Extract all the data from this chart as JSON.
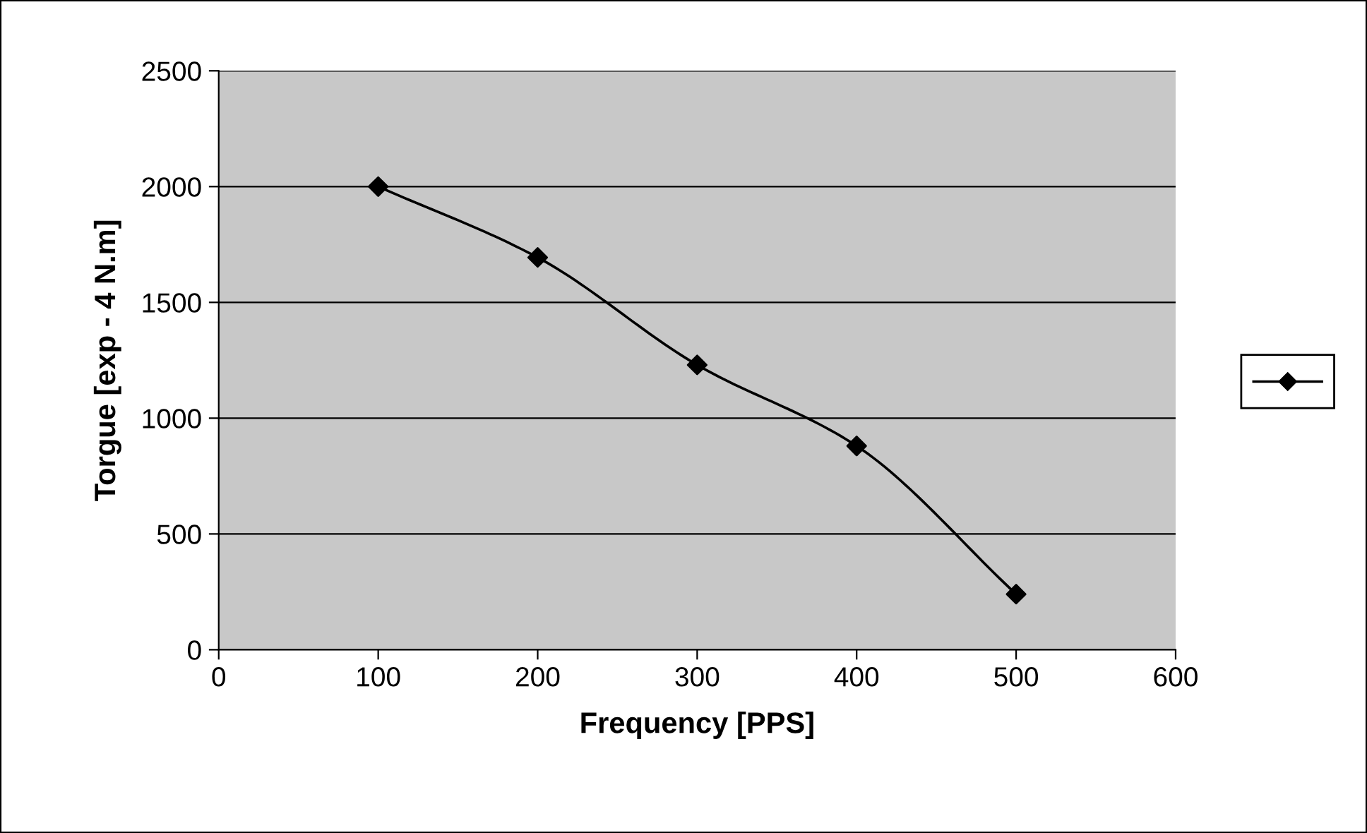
{
  "chart_data": {
    "type": "line",
    "xlabel": "Frequency [PPS]",
    "ylabel": "Torgue [exp - 4 N.m]",
    "x": [
      100,
      200,
      300,
      400,
      500
    ],
    "series": [
      {
        "color": "#000000",
        "values": [
          2000,
          1694,
          1230,
          880,
          240
        ]
      }
    ],
    "xlim": [
      0,
      600
    ],
    "xticks": [
      0,
      100,
      200,
      300,
      400,
      500,
      600
    ],
    "ylim": [
      0,
      2500
    ],
    "yticks": [
      0,
      500,
      1000,
      1500,
      2000,
      2500
    ],
    "grid": "y",
    "marker": "diamond",
    "line_style": "solid"
  }
}
